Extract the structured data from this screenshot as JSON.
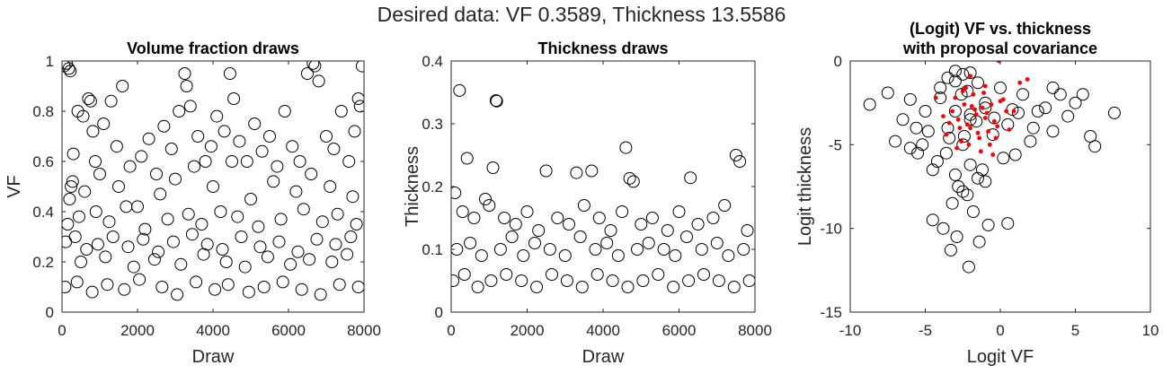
{
  "figure": {
    "suptitle": "Desired data: VF 0.3589, Thickness 13.5586"
  },
  "chart_data": [
    {
      "type": "scatter",
      "title": "Volume fraction draws",
      "title_lines": [
        "Volume fraction draws"
      ],
      "xlabel": "Draw",
      "ylabel": "VF",
      "xlim": [
        0,
        8000
      ],
      "ylim": [
        0,
        1
      ],
      "xticks": [
        0,
        2000,
        4000,
        6000,
        8000
      ],
      "xtick_labels": [
        "0",
        "2000",
        "4000",
        "6000",
        "8000"
      ],
      "yticks": [
        0,
        0.2,
        0.4,
        0.6,
        0.8,
        1
      ],
      "ytick_labels": [
        "0",
        "0.2",
        "0.4",
        "0.6",
        "0.8",
        "1"
      ],
      "grid": false,
      "marker": "open-circle",
      "marker_color": "#000000",
      "series": [
        {
          "x": [
            60,
            120,
            180,
            220,
            300,
            420,
            560,
            700,
            760,
            820,
            880,
            1100,
            1300,
            1450,
            1600,
            1800,
            2100,
            2300,
            2500,
            2700,
            2900,
            3100,
            3250,
            3300,
            3400,
            3600,
            3800,
            3950,
            4100,
            4300,
            4450,
            4550,
            4700,
            4900,
            5100,
            5300,
            5500,
            5700,
            5900,
            6100,
            6300,
            6500,
            6650,
            6700,
            6800,
            7000,
            7200,
            7400,
            7600,
            7750,
            7850,
            7900,
            7950,
            200,
            240,
            280,
            600,
            1000,
            1500,
            2000,
            2600,
            3000,
            3500,
            4000,
            4500,
            5000,
            5600,
            6200,
            6600,
            7100,
            7700,
            150,
            450,
            900,
            1250,
            1700,
            2200,
            2800,
            3350,
            3700,
            4200,
            4650,
            5200,
            5800,
            6400,
            6900,
            7300,
            7800,
            100,
            350,
            650,
            950,
            1350,
            1750,
            2150,
            2550,
            2950,
            3450,
            3850,
            4250,
            4750,
            5250,
            5750,
            6250,
            6750,
            7250,
            7650,
            500,
            1150,
            1900,
            2450,
            3150,
            3750,
            4350,
            4850,
            5450,
            6050,
            6550,
            7150,
            7550,
            80,
            400,
            800,
            1200,
            1650,
            2050,
            2650,
            3050,
            3550,
            4050,
            4400,
            4950,
            5350,
            5850,
            6350,
            6850,
            7350,
            7850
          ],
          "y": [
            0.98,
            0.99,
            0.97,
            0.96,
            0.63,
            0.8,
            0.78,
            0.85,
            0.84,
            0.72,
            0.6,
            0.75,
            0.84,
            0.66,
            0.9,
            0.58,
            0.62,
            0.69,
            0.55,
            0.74,
            0.65,
            0.8,
            0.95,
            0.9,
            0.82,
            0.7,
            0.6,
            0.66,
            0.78,
            0.72,
            0.95,
            0.85,
            0.68,
            0.6,
            0.75,
            0.64,
            0.7,
            0.58,
            0.8,
            0.66,
            0.6,
            0.95,
            0.99,
            0.98,
            0.92,
            0.7,
            0.65,
            0.8,
            0.6,
            0.72,
            0.85,
            0.82,
            0.98,
            0.45,
            0.5,
            0.52,
            0.48,
            0.55,
            0.5,
            0.42,
            0.47,
            0.53,
            0.58,
            0.5,
            0.6,
            0.45,
            0.52,
            0.48,
            0.55,
            0.5,
            0.46,
            0.35,
            0.38,
            0.4,
            0.36,
            0.42,
            0.33,
            0.37,
            0.39,
            0.35,
            0.4,
            0.38,
            0.34,
            0.37,
            0.41,
            0.36,
            0.39,
            0.35,
            0.28,
            0.3,
            0.25,
            0.27,
            0.3,
            0.26,
            0.29,
            0.24,
            0.28,
            0.31,
            0.27,
            0.25,
            0.3,
            0.26,
            0.28,
            0.24,
            0.29,
            0.27,
            0.3,
            0.2,
            0.22,
            0.18,
            0.21,
            0.19,
            0.23,
            0.2,
            0.18,
            0.22,
            0.19,
            0.21,
            0.2,
            0.23,
            0.1,
            0.12,
            0.08,
            0.11,
            0.09,
            0.13,
            0.1,
            0.07,
            0.12,
            0.09,
            0.11,
            0.08,
            0.1,
            0.12,
            0.09,
            0.07,
            0.11,
            0.1
          ]
        }
      ]
    },
    {
      "type": "scatter",
      "title": "Thickness draws",
      "title_lines": [
        "Thickness draws"
      ],
      "xlabel": "Draw",
      "ylabel": "Thickness",
      "xlim": [
        0,
        8000
      ],
      "ylim": [
        0,
        0.4
      ],
      "xticks": [
        0,
        2000,
        4000,
        6000,
        8000
      ],
      "xtick_labels": [
        "0",
        "2000",
        "4000",
        "6000",
        "8000"
      ],
      "yticks": [
        0,
        0.1,
        0.2,
        0.3,
        0.4
      ],
      "ytick_labels": [
        "0",
        "0.1",
        "0.2",
        "0.3",
        "0.4"
      ],
      "grid": false,
      "marker": "open-circle",
      "marker_color": "#000000",
      "series": [
        {
          "x": [
            220,
            420,
            1100,
            1180,
            1200,
            2500,
            3300,
            3700,
            4600,
            4700,
            4800,
            6300,
            7500,
            7600,
            100,
            300,
            600,
            900,
            1000,
            1400,
            1700,
            2000,
            2300,
            2800,
            3100,
            3500,
            3900,
            4200,
            4500,
            5000,
            5300,
            5700,
            6000,
            6500,
            6900,
            7200,
            7800,
            150,
            500,
            800,
            1300,
            1600,
            1900,
            2200,
            2600,
            3000,
            3400,
            3800,
            4100,
            4400,
            4900,
            5200,
            5600,
            5900,
            6200,
            6600,
            7000,
            7300,
            7700,
            50,
            350,
            700,
            1050,
            1450,
            1850,
            2250,
            2650,
            3050,
            3450,
            3850,
            4250,
            4650,
            5050,
            5450,
            5850,
            6250,
            6650,
            7050,
            7450,
            7850
          ],
          "y": [
            0.353,
            0.245,
            0.23,
            0.337,
            0.336,
            0.225,
            0.222,
            0.225,
            0.262,
            0.213,
            0.208,
            0.214,
            0.25,
            0.24,
            0.19,
            0.16,
            0.15,
            0.18,
            0.17,
            0.15,
            0.14,
            0.16,
            0.13,
            0.15,
            0.14,
            0.17,
            0.15,
            0.13,
            0.16,
            0.14,
            0.15,
            0.13,
            0.16,
            0.14,
            0.15,
            0.17,
            0.13,
            0.1,
            0.11,
            0.09,
            0.1,
            0.12,
            0.09,
            0.11,
            0.1,
            0.09,
            0.12,
            0.1,
            0.11,
            0.09,
            0.1,
            0.11,
            0.1,
            0.09,
            0.12,
            0.1,
            0.11,
            0.09,
            0.1,
            0.05,
            0.06,
            0.04,
            0.05,
            0.06,
            0.05,
            0.04,
            0.06,
            0.05,
            0.04,
            0.06,
            0.05,
            0.04,
            0.05,
            0.06,
            0.04,
            0.05,
            0.06,
            0.05,
            0.04,
            0.05
          ]
        }
      ]
    },
    {
      "type": "scatter",
      "title": "(Logit) VF vs. thickness with proposal covariance",
      "title_lines": [
        "(Logit) VF vs. thickness",
        "with proposal covariance"
      ],
      "xlabel": "Logit VF",
      "ylabel": "Logit thickness",
      "xlim": [
        -10,
        10
      ],
      "ylim": [
        -15,
        0
      ],
      "xticks": [
        -10,
        -5,
        0,
        5,
        10
      ],
      "xtick_labels": [
        "-10",
        "-5",
        "0",
        "5",
        "10"
      ],
      "yticks": [
        -15,
        -10,
        -5,
        0
      ],
      "ytick_labels": [
        "-15",
        "-10",
        "-5",
        "0"
      ],
      "grid": false,
      "marker": "open-circle",
      "marker_color": "#000000",
      "series": [
        {
          "x": [
            -8.7,
            -7.5,
            -7.0,
            -6.5,
            -6.0,
            -5.5,
            -5.0,
            -4.5,
            -4.0,
            -3.5,
            -3.0,
            -2.5,
            -2.0,
            -1.5,
            -1.0,
            -0.5,
            0.0,
            0.5,
            1.0,
            1.5,
            2.0,
            2.5,
            3.0,
            3.5,
            4.0,
            4.5,
            5.0,
            5.5,
            6.0,
            6.3,
            7.6,
            -3.0,
            -2.5,
            -2.0,
            -3.5,
            -1.5,
            -4.0,
            -2.8,
            -2.2,
            -3.2,
            -1.8,
            -4.5,
            -0.8,
            0.5,
            -3.8,
            -5.2,
            -2.0,
            -3.0,
            -1.0,
            -2.5,
            -4.2,
            -1.2,
            0.2,
            -3.6,
            -2.4,
            -1.6,
            -4.8,
            -0.4,
            0.8,
            1.2,
            -5.6,
            -2.9,
            -3.3,
            -2.1,
            -6.0,
            -1.4,
            2.2,
            3.5,
            -3.0,
            -2.6,
            -2.0,
            -1.0,
            -3.4,
            -2.2
          ],
          "y": [
            -2.6,
            -1.9,
            -4.8,
            -3.5,
            -2.3,
            -5.5,
            -3.0,
            -6.5,
            -2.2,
            -4.0,
            -1.2,
            -5.0,
            -3.2,
            -7.0,
            -2.5,
            -4.4,
            -1.6,
            -3.8,
            -5.6,
            -2.0,
            -4.8,
            -3.0,
            -2.8,
            -1.6,
            -2.0,
            -3.3,
            -2.5,
            -2.0,
            -4.5,
            -5.1,
            -3.1,
            -0.6,
            -0.8,
            -0.7,
            -1.0,
            -1.3,
            -1.6,
            -7.5,
            -8.0,
            -8.5,
            -9.0,
            -9.5,
            -9.8,
            -9.7,
            -10.0,
            -5.0,
            -6.2,
            -6.8,
            -7.2,
            -7.8,
            -6.0,
            -6.5,
            -5.8,
            -5.5,
            -4.5,
            -3.6,
            -4.2,
            -3.4,
            -2.9,
            -3.1,
            -4.0,
            -10.5,
            -11.3,
            -12.3,
            -5.2,
            -10.8,
            -4.0,
            -4.2,
            -3.0,
            -2.0,
            -3.5,
            -2.8,
            -4.6,
            -1.8
          ]
        },
        {
          "name": "proposal",
          "marker": "filled-dot",
          "marker_color": "#ff0000",
          "x": [
            -3.2,
            -2.8,
            -2.4,
            -2.0,
            -1.6,
            -1.2,
            -0.8,
            -0.4,
            0.0,
            0.4,
            -3.6,
            -3.0,
            -2.6,
            -2.2,
            -1.8,
            -1.4,
            -1.0,
            -0.6,
            -0.2,
            0.6,
            -2.9,
            -2.5,
            -2.1,
            -1.7,
            -1.3,
            -0.9,
            -3.4,
            -2.3,
            -1.5,
            -0.7,
            0.2,
            -3.8,
            -2.7,
            -1.9,
            -1.1,
            -0.3,
            -0.1,
            1.3,
            1.8,
            -4.3,
            -0.5,
            0.9,
            -2.0,
            -1.0
          ],
          "y": [
            -3.0,
            -3.5,
            -2.6,
            -4.0,
            -3.2,
            -2.8,
            -4.2,
            -3.6,
            -2.4,
            -3.0,
            -4.4,
            -2.2,
            -4.8,
            -3.8,
            -2.0,
            -4.6,
            -3.4,
            -2.6,
            -3.9,
            -4.1,
            -5.2,
            -1.8,
            -5.0,
            -2.9,
            -5.4,
            -3.1,
            -3.7,
            -1.6,
            -4.3,
            -5.0,
            -2.3,
            -3.3,
            -4.0,
            -2.7,
            -1.9,
            -4.6,
            0.0,
            -1.3,
            -1.1,
            -2.2,
            -5.6,
            -3.0,
            -0.9,
            -1.5
          ]
        }
      ]
    }
  ]
}
